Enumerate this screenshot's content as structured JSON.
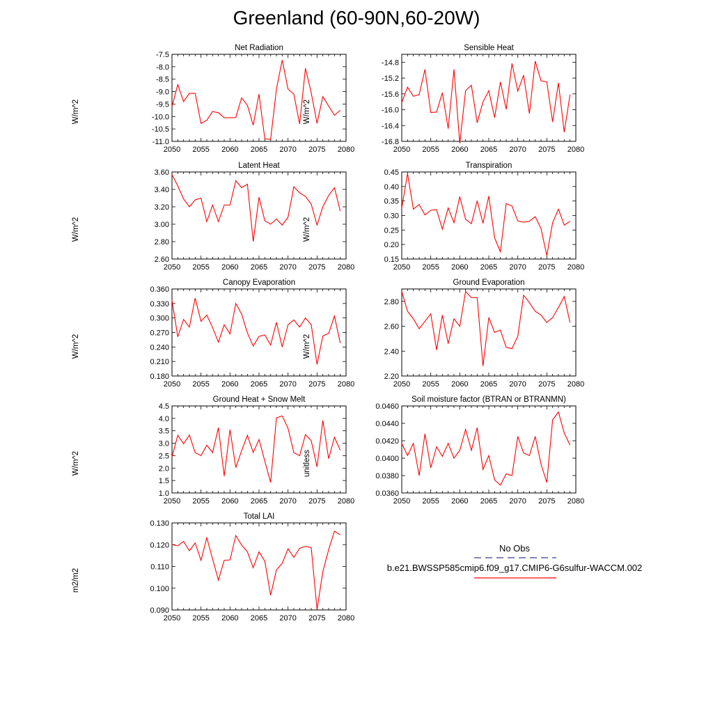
{
  "title": "Greenland (60-90N,60-20W)",
  "legend": {
    "obs_label": "No Obs",
    "model_label": "b.e21.BWSSP585cmip6.f09_g17.CMIP6-G6sulfur-WACCM.002",
    "obs_color": "#3b3b8f",
    "model_color": "#ff0000"
  },
  "chart_data": [
    {
      "type": "line",
      "title": "Net Radiation",
      "xlabel": "",
      "ylabel": "W/m^2",
      "xlim": [
        2050,
        2080
      ],
      "ylim": [
        -11.0,
        -7.5
      ],
      "yticks": [
        "-7.5",
        "-8.0",
        "-8.5",
        "-9.0",
        "-9.5",
        "-10.0",
        "-10.5",
        "-11.0"
      ],
      "xticks": [
        "2050",
        "2055",
        "2060",
        "2065",
        "2070",
        "2075",
        "2080"
      ],
      "series": [
        {
          "color": "#ff0000",
          "x": [
            2050,
            2051,
            2052,
            2053,
            2054,
            2055,
            2056,
            2057,
            2058,
            2059,
            2060,
            2061,
            2062,
            2063,
            2064,
            2065,
            2066,
            2067,
            2068,
            2069,
            2070,
            2071,
            2072,
            2073,
            2074,
            2075,
            2076,
            2077,
            2078,
            2079
          ],
          "values": [
            -9.6,
            -8.72,
            -9.4,
            -9.07,
            -9.07,
            -10.28,
            -10.15,
            -9.8,
            -9.85,
            -10.05,
            -10.05,
            -10.04,
            -9.25,
            -9.55,
            -10.35,
            -9.1,
            -10.9,
            -10.92,
            -8.9,
            -7.73,
            -8.9,
            -9.1,
            -10.3,
            -8.06,
            -9.05,
            -10.28,
            -9.2,
            -9.58,
            -9.95,
            -9.75
          ]
        }
      ]
    },
    {
      "type": "line",
      "title": "Sensible Heat",
      "xlabel": "",
      "ylabel": "W/m^2",
      "xlim": [
        2050,
        2080
      ],
      "ylim": [
        -16.8,
        -14.6
      ],
      "yticks": [
        "-14.8",
        "-15.2",
        "-15.6",
        "-16.0",
        "-16.4",
        "-16.8"
      ],
      "xticks": [
        "2050",
        "2055",
        "2060",
        "2065",
        "2070",
        "2075",
        "2080"
      ],
      "series": [
        {
          "color": "#ff0000",
          "x": [
            2050,
            2051,
            2052,
            2053,
            2054,
            2055,
            2056,
            2057,
            2058,
            2059,
            2060,
            2061,
            2062,
            2063,
            2064,
            2065,
            2066,
            2067,
            2068,
            2069,
            2070,
            2071,
            2072,
            2073,
            2074,
            2075,
            2076,
            2077,
            2078,
            2079
          ],
          "values": [
            -15.82,
            -15.43,
            -15.66,
            -15.62,
            -14.98,
            -16.07,
            -16.06,
            -15.57,
            -16.48,
            -14.98,
            -16.85,
            -15.52,
            -15.38,
            -16.33,
            -15.8,
            -15.52,
            -16.2,
            -15.3,
            -15.99,
            -14.83,
            -15.53,
            -15.13,
            -16.1,
            -14.77,
            -15.27,
            -15.3,
            -16.31,
            -15.32,
            -16.57,
            -15.62
          ]
        }
      ]
    },
    {
      "type": "line",
      "title": "Latent Heat",
      "xlabel": "",
      "ylabel": "W/m^2",
      "xlim": [
        2050,
        2080
      ],
      "ylim": [
        2.6,
        3.6
      ],
      "yticks": [
        "3.60",
        "3.40",
        "3.20",
        "3.00",
        "2.80",
        "2.60"
      ],
      "xticks": [
        "2050",
        "2055",
        "2060",
        "2065",
        "2070",
        "2075",
        "2080"
      ],
      "series": [
        {
          "color": "#ff0000",
          "x": [
            2050,
            2051,
            2052,
            2053,
            2054,
            2055,
            2056,
            2057,
            2058,
            2059,
            2060,
            2061,
            2062,
            2063,
            2064,
            2065,
            2066,
            2067,
            2068,
            2069,
            2070,
            2071,
            2072,
            2073,
            2074,
            2075,
            2076,
            2077,
            2078,
            2079
          ],
          "values": [
            3.57,
            3.44,
            3.29,
            3.2,
            3.28,
            3.3,
            3.03,
            3.22,
            3.03,
            3.22,
            3.22,
            3.5,
            3.42,
            3.46,
            2.8,
            3.31,
            3.04,
            3.0,
            3.06,
            2.99,
            3.08,
            3.43,
            3.36,
            3.32,
            3.23,
            2.99,
            3.2,
            3.33,
            3.42,
            3.15
          ]
        }
      ]
    },
    {
      "type": "line",
      "title": "Transpiration",
      "xlabel": "",
      "ylabel": "W/m^2",
      "xlim": [
        2050,
        2080
      ],
      "ylim": [
        0.15,
        0.45
      ],
      "yticks": [
        "0.45",
        "0.40",
        "0.35",
        "0.30",
        "0.25",
        "0.20",
        "0.15"
      ],
      "xticks": [
        "2050",
        "2055",
        "2060",
        "2065",
        "2070",
        "2075",
        "2080"
      ],
      "series": [
        {
          "color": "#ff0000",
          "x": [
            2050,
            2051,
            2052,
            2053,
            2054,
            2055,
            2056,
            2057,
            2058,
            2059,
            2060,
            2061,
            2062,
            2063,
            2064,
            2065,
            2066,
            2067,
            2068,
            2069,
            2070,
            2071,
            2072,
            2073,
            2074,
            2075,
            2076,
            2077,
            2078,
            2079
          ],
          "values": [
            0.325,
            0.445,
            0.322,
            0.338,
            0.302,
            0.318,
            0.32,
            0.253,
            0.326,
            0.275,
            0.365,
            0.287,
            0.272,
            0.351,
            0.273,
            0.367,
            0.223,
            0.175,
            0.341,
            0.333,
            0.281,
            0.277,
            0.28,
            0.296,
            0.255,
            0.162,
            0.275,
            0.322,
            0.267,
            0.28
          ]
        }
      ]
    },
    {
      "type": "line",
      "title": "Canopy Evaporation",
      "xlabel": "",
      "ylabel": "W/m^2",
      "xlim": [
        2050,
        2080
      ],
      "ylim": [
        0.18,
        0.36
      ],
      "yticks": [
        "0.360",
        "0.330",
        "0.300",
        "0.270",
        "0.240",
        "0.210",
        "0.180"
      ],
      "xticks": [
        "2050",
        "2055",
        "2060",
        "2065",
        "2070",
        "2075",
        "2080"
      ],
      "series": [
        {
          "color": "#ff0000",
          "x": [
            2050,
            2051,
            2052,
            2053,
            2054,
            2055,
            2056,
            2057,
            2058,
            2059,
            2060,
            2061,
            2062,
            2063,
            2064,
            2065,
            2066,
            2067,
            2068,
            2069,
            2070,
            2071,
            2072,
            2073,
            2074,
            2075,
            2076,
            2077,
            2078,
            2079
          ],
          "values": [
            0.337,
            0.261,
            0.297,
            0.281,
            0.341,
            0.293,
            0.306,
            0.28,
            0.25,
            0.286,
            0.267,
            0.33,
            0.308,
            0.269,
            0.242,
            0.262,
            0.265,
            0.244,
            0.291,
            0.24,
            0.286,
            0.296,
            0.281,
            0.3,
            0.286,
            0.204,
            0.263,
            0.268,
            0.304,
            0.248
          ]
        }
      ]
    },
    {
      "type": "line",
      "title": "Ground Evaporation",
      "xlabel": "",
      "ylabel": "W/m^2",
      "xlim": [
        2050,
        2080
      ],
      "ylim": [
        2.2,
        2.9
      ],
      "yticks": [
        "2.80",
        "2.60",
        "2.40",
        "2.20"
      ],
      "xticks": [
        "2050",
        "2055",
        "2060",
        "2065",
        "2070",
        "2075",
        "2080"
      ],
      "series": [
        {
          "color": "#ff0000",
          "x": [
            2050,
            2051,
            2052,
            2053,
            2054,
            2055,
            2056,
            2057,
            2058,
            2059,
            2060,
            2061,
            2062,
            2063,
            2064,
            2065,
            2066,
            2067,
            2068,
            2069,
            2070,
            2071,
            2072,
            2073,
            2074,
            2075,
            2076,
            2077,
            2078,
            2079
          ],
          "values": [
            2.88,
            2.72,
            2.66,
            2.58,
            2.64,
            2.7,
            2.41,
            2.69,
            2.46,
            2.66,
            2.6,
            2.88,
            2.83,
            2.83,
            2.28,
            2.67,
            2.55,
            2.57,
            2.43,
            2.42,
            2.52,
            2.85,
            2.79,
            2.72,
            2.69,
            2.63,
            2.67,
            2.75,
            2.84,
            2.63
          ]
        }
      ]
    },
    {
      "type": "line",
      "title": "Ground Heat + Snow Melt",
      "xlabel": "",
      "ylabel": "W/m^2",
      "xlim": [
        2050,
        2080
      ],
      "ylim": [
        1.0,
        4.5
      ],
      "yticks": [
        "4.5",
        "4.0",
        "3.5",
        "3.0",
        "2.5",
        "2.0",
        "1.5",
        "1.0"
      ],
      "xticks": [
        "2050",
        "2055",
        "2060",
        "2065",
        "2070",
        "2075",
        "2080"
      ],
      "series": [
        {
          "color": "#ff0000",
          "x": [
            2050,
            2051,
            2052,
            2053,
            2054,
            2055,
            2056,
            2057,
            2058,
            2059,
            2060,
            2061,
            2062,
            2063,
            2064,
            2065,
            2066,
            2067,
            2068,
            2069,
            2070,
            2071,
            2072,
            2073,
            2074,
            2075,
            2076,
            2077,
            2078,
            2079
          ],
          "values": [
            2.45,
            3.32,
            2.98,
            3.33,
            2.62,
            2.5,
            2.92,
            2.62,
            3.63,
            1.68,
            3.55,
            2.02,
            2.7,
            3.32,
            2.63,
            3.15,
            2.28,
            1.42,
            4.02,
            4.1,
            3.6,
            2.62,
            2.5,
            3.35,
            3.1,
            2.05,
            3.92,
            2.38,
            3.24,
            2.72
          ]
        }
      ]
    },
    {
      "type": "line",
      "title": "Soil moisture factor (BTRAN or BTRANMN)",
      "xlabel": "",
      "ylabel": "unitless",
      "xlim": [
        2050,
        2080
      ],
      "ylim": [
        0.036,
        0.046
      ],
      "yticks": [
        "0.0460",
        "0.0440",
        "0.0420",
        "0.0400",
        "0.0380",
        "0.0360"
      ],
      "xticks": [
        "2050",
        "2055",
        "2060",
        "2065",
        "2070",
        "2075",
        "2080"
      ],
      "series": [
        {
          "color": "#ff0000",
          "x": [
            2050,
            2051,
            2052,
            2053,
            2054,
            2055,
            2056,
            2057,
            2058,
            2059,
            2060,
            2061,
            2062,
            2063,
            2064,
            2065,
            2066,
            2067,
            2068,
            2069,
            2070,
            2071,
            2072,
            2073,
            2074,
            2075,
            2076,
            2077,
            2078,
            2079
          ],
          "values": [
            0.0417,
            0.0403,
            0.0417,
            0.038,
            0.0428,
            0.0389,
            0.0413,
            0.0402,
            0.0417,
            0.04,
            0.0409,
            0.0433,
            0.0409,
            0.0435,
            0.0387,
            0.0403,
            0.0375,
            0.0369,
            0.0382,
            0.038,
            0.0425,
            0.0406,
            0.0403,
            0.0425,
            0.0393,
            0.0372,
            0.0444,
            0.0453,
            0.0429,
            0.0415
          ]
        }
      ]
    },
    {
      "type": "line",
      "title": "Total LAI",
      "xlabel": "",
      "ylabel": "m2/m2",
      "xlim": [
        2050,
        2080
      ],
      "ylim": [
        0.09,
        0.13
      ],
      "yticks": [
        "0.130",
        "0.120",
        "0.110",
        "0.100",
        "0.090"
      ],
      "xticks": [
        "2050",
        "2055",
        "2060",
        "2065",
        "2070",
        "2075",
        "2080"
      ],
      "series": [
        {
          "color": "#ff0000",
          "x": [
            2050,
            2051,
            2052,
            2053,
            2054,
            2055,
            2056,
            2057,
            2058,
            2059,
            2060,
            2061,
            2062,
            2063,
            2064,
            2065,
            2066,
            2067,
            2068,
            2069,
            2070,
            2071,
            2072,
            2073,
            2074,
            2075,
            2076,
            2077,
            2078,
            2079
          ],
          "values": [
            0.12,
            0.1195,
            0.1215,
            0.1172,
            0.1208,
            0.1128,
            0.1232,
            0.1134,
            0.1037,
            0.1128,
            0.113,
            0.1242,
            0.1198,
            0.1167,
            0.1094,
            0.1167,
            0.1124,
            0.0968,
            0.1084,
            0.1114,
            0.1181,
            0.1142,
            0.1183,
            0.1192,
            0.1186,
            0.0902,
            0.1076,
            0.1177,
            0.1262,
            0.1245
          ]
        }
      ]
    }
  ]
}
